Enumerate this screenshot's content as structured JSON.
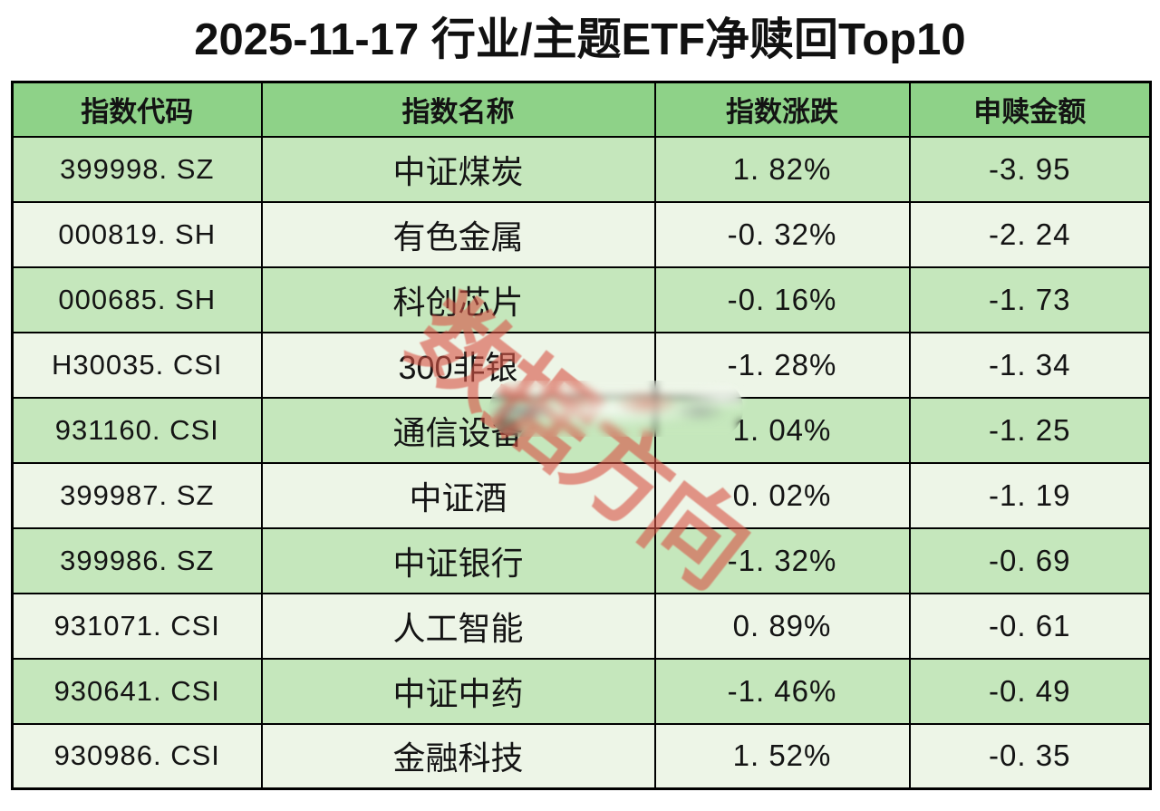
{
  "title": "2025-11-17 行业/主题ETF净赎回Top10",
  "watermark": "数据方向",
  "colors": {
    "header_bg": "#8ed288",
    "row_odd_bg": "#c5e7bc",
    "row_even_bg": "#edf5e7",
    "border": "#000000",
    "watermark": "rgba(217,84,70,0.78)"
  },
  "table": {
    "columns": [
      "指数代码",
      "指数名称",
      "指数涨跌",
      "申赎金额"
    ],
    "rows": [
      {
        "code": "399998. SZ",
        "name": "中证煤炭",
        "change": "1. 82%",
        "amount": "-3. 95"
      },
      {
        "code": "000819. SH",
        "name": "有色金属",
        "change": "-0. 32%",
        "amount": "-2. 24"
      },
      {
        "code": "000685. SH",
        "name": "科创芯片",
        "change": "-0. 16%",
        "amount": "-1. 73"
      },
      {
        "code": "H30035. CSI",
        "name": "300非银",
        "change": "-1. 28%",
        "amount": "-1. 34"
      },
      {
        "code": "931160. CSI",
        "name": "通信设备",
        "change": "1. 04%",
        "amount": "-1. 25"
      },
      {
        "code": "399987. SZ",
        "name": "中证酒",
        "change": "0. 02%",
        "amount": "-1. 19"
      },
      {
        "code": "399986. SZ",
        "name": "中证银行",
        "change": "-1. 32%",
        "amount": "-0. 69"
      },
      {
        "code": "931071. CSI",
        "name": "人工智能",
        "change": "0. 89%",
        "amount": "-0. 61"
      },
      {
        "code": "930641. CSI",
        "name": "中证中药",
        "change": "-1. 46%",
        "amount": "-0. 49"
      },
      {
        "code": "930986. CSI",
        "name": "金融科技",
        "change": "1. 52%",
        "amount": "-0. 35"
      }
    ]
  },
  "chart_data": {
    "type": "table",
    "title": "2025-11-17 行业/主题ETF净赎回Top10",
    "columns": [
      "指数代码",
      "指数名称",
      "指数涨跌(%)",
      "申赎金额"
    ],
    "rows": [
      [
        "399998.SZ",
        "中证煤炭",
        1.82,
        -3.95
      ],
      [
        "000819.SH",
        "有色金属",
        -0.32,
        -2.24
      ],
      [
        "000685.SH",
        "科创芯片",
        -0.16,
        -1.73
      ],
      [
        "H30035.CSI",
        "300非银",
        -1.28,
        -1.34
      ],
      [
        "931160.CSI",
        "通信设备",
        1.04,
        -1.25
      ],
      [
        "399987.SZ",
        "中证酒",
        0.02,
        -1.19
      ],
      [
        "399986.SZ",
        "中证银行",
        -1.32,
        -0.69
      ],
      [
        "931071.CSI",
        "人工智能",
        0.89,
        -0.61
      ],
      [
        "930641.CSI",
        "中证中药",
        -1.46,
        -0.49
      ],
      [
        "930986.CSI",
        "金融科技",
        1.52,
        -0.35
      ]
    ]
  }
}
